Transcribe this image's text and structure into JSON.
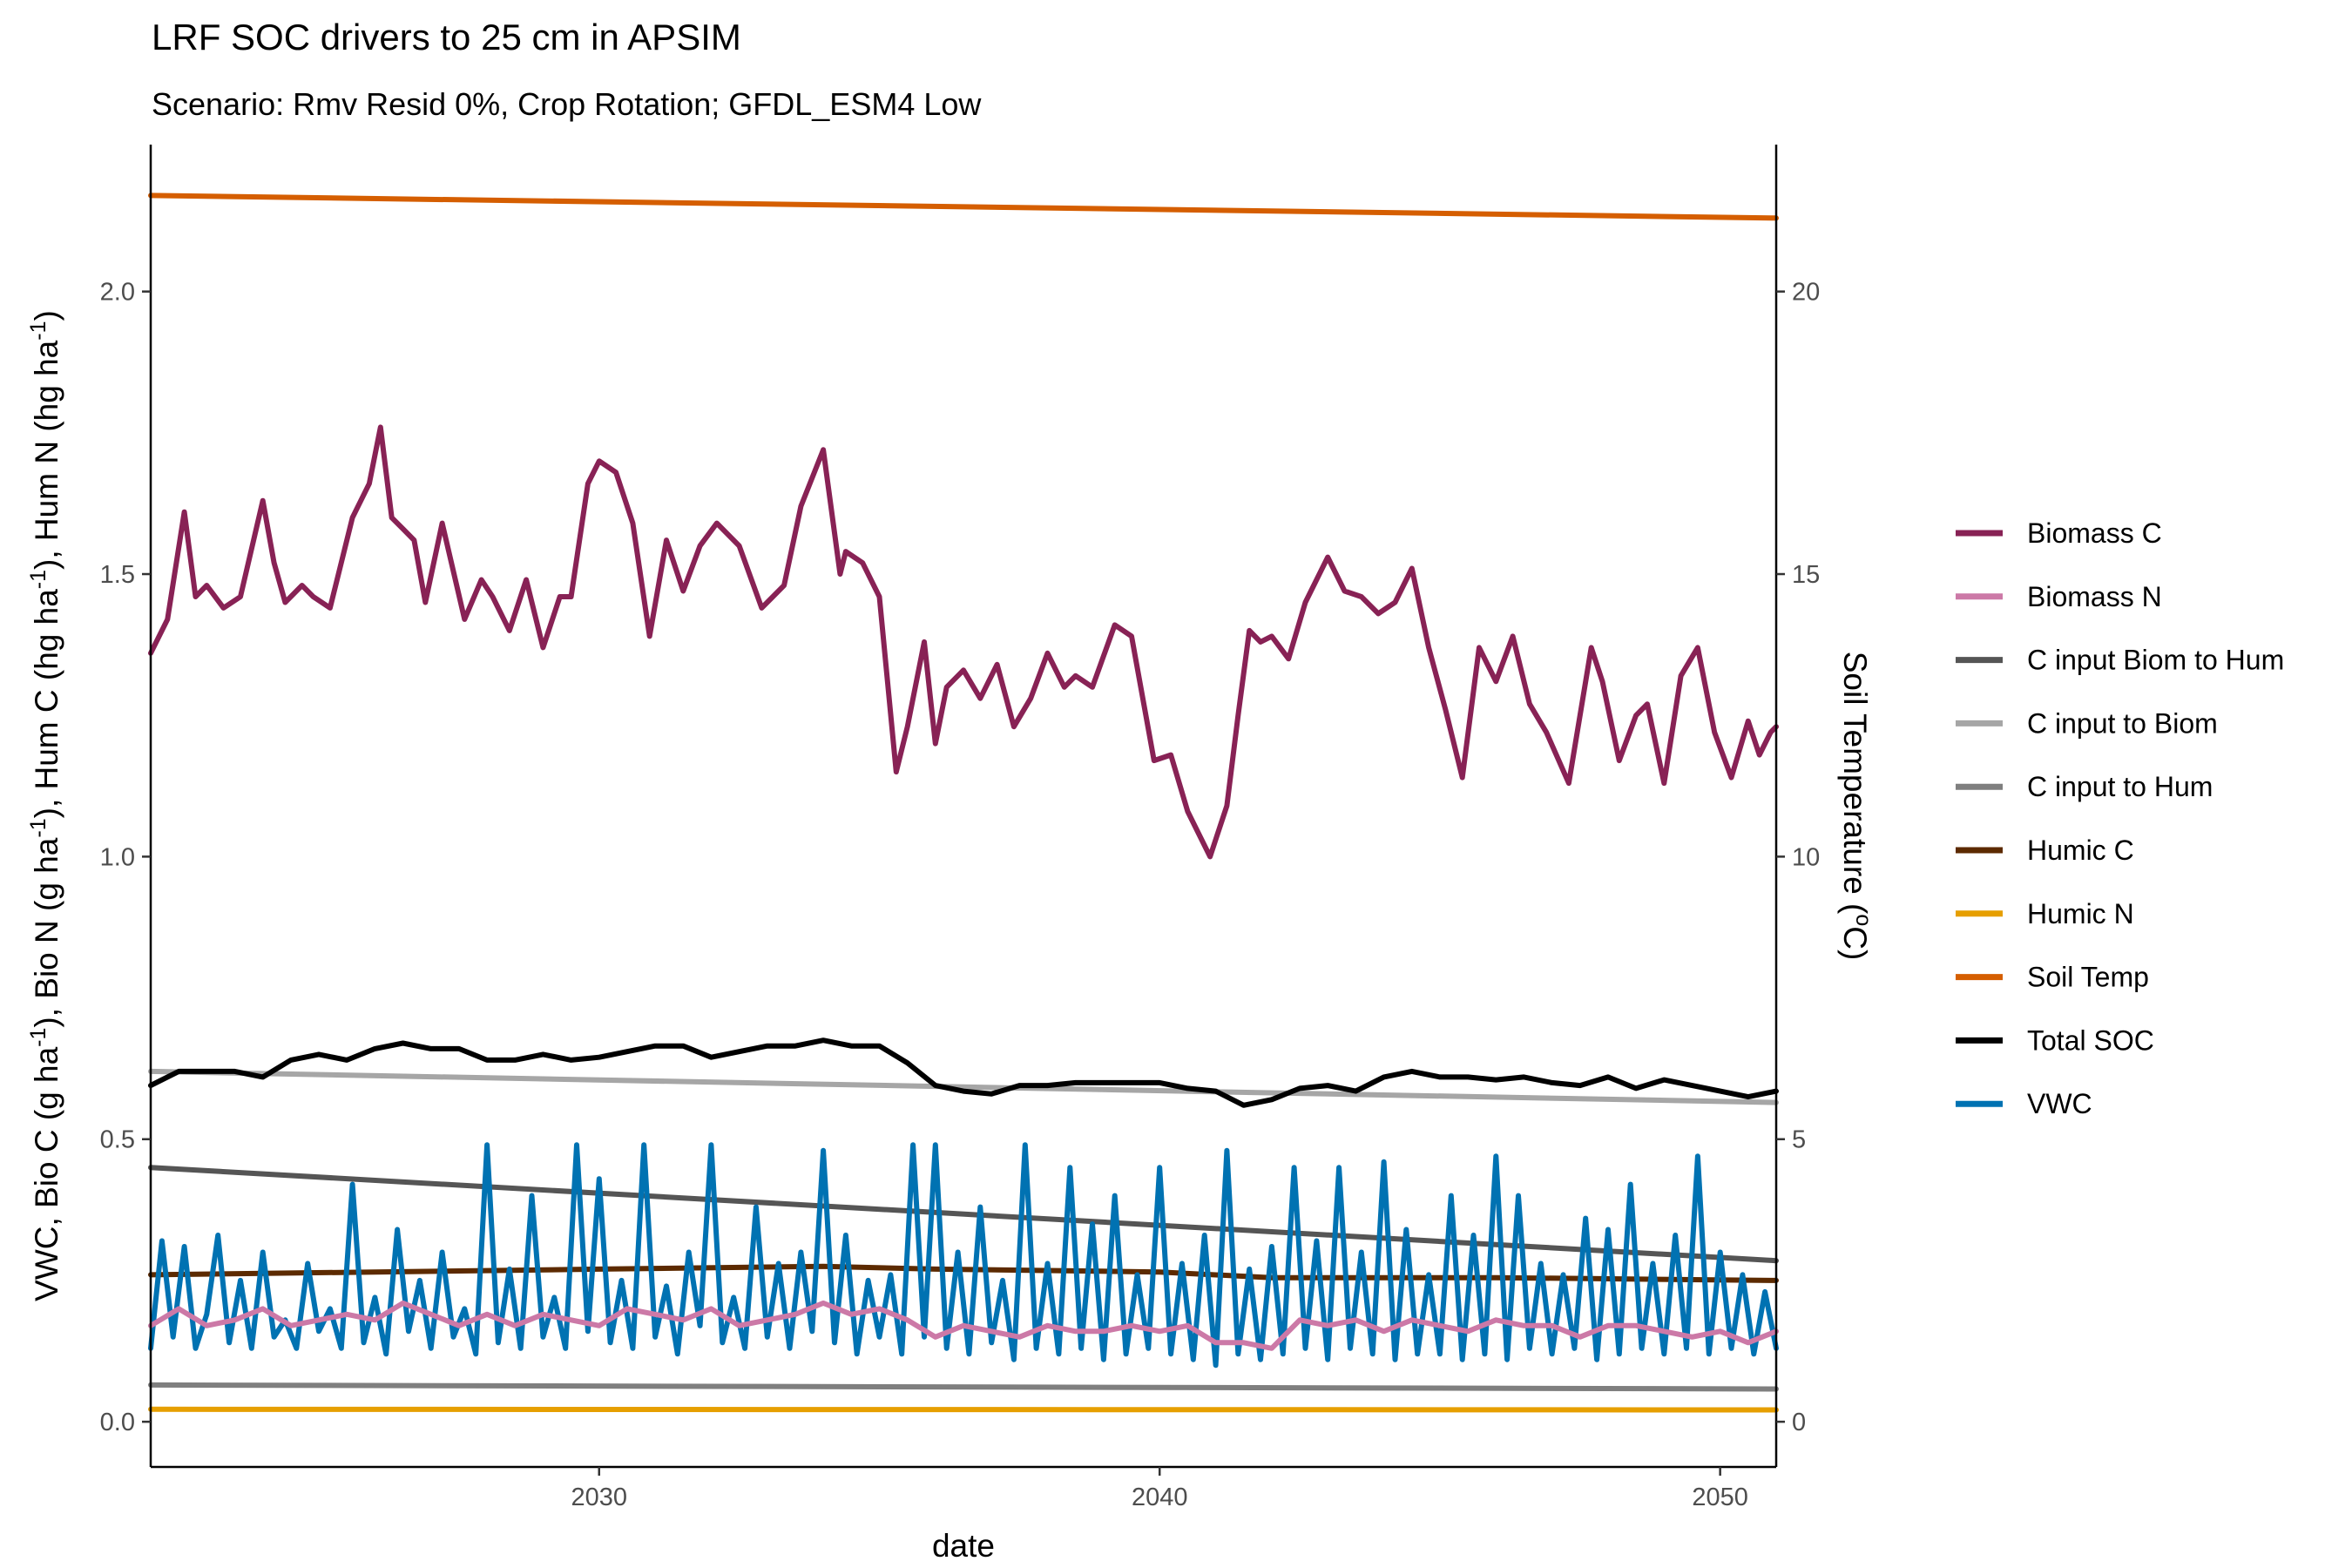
{
  "chart_data": {
    "type": "line",
    "title": "LRF SOC drivers to 25 cm in APSIM",
    "subtitle": "Scenario: Rmv Resid 0%, Crop Rotation; GFDL_ESM4 Low",
    "xlabel": "date",
    "ylabel_left": {
      "p1": "VWC, Bio C (g ha",
      "p2": "), Bio N (g ha",
      "p3": "), Hum C (hg ha",
      "p4": "), Hum N (hg ha",
      "p5": ")",
      "sup": "-1"
    },
    "ylabel_right": {
      "p1": "Soil Temperature (",
      "sup": "o",
      "p2": "C)"
    },
    "xlim": [
      2022.0,
      2051.0
    ],
    "ylim_left": [
      -0.08,
      2.26
    ],
    "ylim_right": [
      -0.8,
      22.6
    ],
    "x_ticks": [
      2030,
      2040,
      2050
    ],
    "y_ticks_left": [
      "0.0",
      "0.5",
      "1.0",
      "1.5",
      "2.0"
    ],
    "y_ticks_right": [
      "0",
      "5",
      "10",
      "15",
      "20"
    ],
    "grid": false,
    "legend_position": "right",
    "series": [
      {
        "name": "Biomass C",
        "color": "#882255",
        "axis": "left",
        "x": [
          2022.0,
          2022.3,
          2022.6,
          2022.8,
          2023.0,
          2023.3,
          2023.6,
          2024.0,
          2024.2,
          2024.4,
          2024.7,
          2024.9,
          2025.2,
          2025.6,
          2025.9,
          2026.1,
          2026.3,
          2026.5,
          2026.7,
          2026.9,
          2027.2,
          2027.6,
          2027.9,
          2028.1,
          2028.4,
          2028.7,
          2029.0,
          2029.3,
          2029.5,
          2029.8,
          2030.0,
          2030.3,
          2030.6,
          2030.9,
          2031.2,
          2031.5,
          2031.8,
          2032.1,
          2032.5,
          2032.9,
          2033.3,
          2033.6,
          2034.0,
          2034.3,
          2034.4,
          2034.7,
          2035.0,
          2035.3,
          2035.5,
          2035.8,
          2036.0,
          2036.2,
          2036.5,
          2036.8,
          2037.1,
          2037.4,
          2037.7,
          2038.0,
          2038.3,
          2038.5,
          2038.8,
          2039.2,
          2039.5,
          2039.9,
          2040.2,
          2040.5,
          2040.9,
          2041.2,
          2041.4,
          2041.6,
          2041.8,
          2042.0,
          2042.3,
          2042.6,
          2043.0,
          2043.3,
          2043.6,
          2043.9,
          2044.2,
          2044.5,
          2044.8,
          2045.1,
          2045.4,
          2045.7,
          2046.0,
          2046.3,
          2046.6,
          2046.9,
          2047.3,
          2047.7,
          2047.9,
          2048.2,
          2048.5,
          2048.7,
          2049.0,
          2049.3,
          2049.6,
          2049.9,
          2050.2,
          2050.5,
          2050.7,
          2050.9,
          2051.0
        ],
        "values": [
          1.36,
          1.42,
          1.61,
          1.46,
          1.48,
          1.44,
          1.46,
          1.63,
          1.52,
          1.45,
          1.48,
          1.46,
          1.44,
          1.6,
          1.66,
          1.76,
          1.6,
          1.58,
          1.56,
          1.45,
          1.59,
          1.42,
          1.49,
          1.46,
          1.4,
          1.49,
          1.37,
          1.46,
          1.46,
          1.66,
          1.7,
          1.68,
          1.59,
          1.39,
          1.56,
          1.47,
          1.55,
          1.59,
          1.55,
          1.44,
          1.48,
          1.62,
          1.72,
          1.5,
          1.54,
          1.52,
          1.46,
          1.15,
          1.23,
          1.38,
          1.2,
          1.3,
          1.33,
          1.28,
          1.34,
          1.23,
          1.28,
          1.36,
          1.3,
          1.32,
          1.3,
          1.41,
          1.39,
          1.17,
          1.18,
          1.08,
          1.0,
          1.09,
          1.25,
          1.4,
          1.38,
          1.39,
          1.35,
          1.45,
          1.53,
          1.47,
          1.46,
          1.43,
          1.45,
          1.51,
          1.37,
          1.26,
          1.14,
          1.37,
          1.31,
          1.39,
          1.27,
          1.22,
          1.13,
          1.37,
          1.31,
          1.17,
          1.25,
          1.27,
          1.13,
          1.32,
          1.37,
          1.22,
          1.14,
          1.24,
          1.18,
          1.22,
          1.23
        ]
      },
      {
        "name": "Biomass N",
        "color": "#CC79A7",
        "axis": "left",
        "x": [
          2022.0,
          2022.5,
          2023.0,
          2023.5,
          2024.0,
          2024.5,
          2025.0,
          2025.5,
          2026.0,
          2026.5,
          2027.0,
          2027.5,
          2028.0,
          2028.5,
          2029.0,
          2029.5,
          2030.0,
          2030.5,
          2031.0,
          2031.5,
          2032.0,
          2032.5,
          2033.0,
          2033.5,
          2034.0,
          2034.5,
          2035.0,
          2035.5,
          2036.0,
          2036.5,
          2037.0,
          2037.5,
          2038.0,
          2038.5,
          2039.0,
          2039.5,
          2040.0,
          2040.5,
          2041.0,
          2041.5,
          2042.0,
          2042.5,
          2043.0,
          2043.5,
          2044.0,
          2044.5,
          2045.0,
          2045.5,
          2046.0,
          2046.5,
          2047.0,
          2047.5,
          2048.0,
          2048.5,
          2049.0,
          2049.5,
          2050.0,
          2050.5,
          2051.0
        ],
        "values": [
          0.17,
          0.2,
          0.17,
          0.18,
          0.2,
          0.17,
          0.18,
          0.19,
          0.18,
          0.21,
          0.19,
          0.17,
          0.19,
          0.17,
          0.19,
          0.18,
          0.17,
          0.2,
          0.19,
          0.18,
          0.2,
          0.17,
          0.18,
          0.19,
          0.21,
          0.19,
          0.2,
          0.18,
          0.15,
          0.17,
          0.16,
          0.15,
          0.17,
          0.16,
          0.16,
          0.17,
          0.16,
          0.17,
          0.14,
          0.14,
          0.13,
          0.18,
          0.17,
          0.18,
          0.16,
          0.18,
          0.17,
          0.16,
          0.18,
          0.17,
          0.17,
          0.15,
          0.17,
          0.17,
          0.16,
          0.15,
          0.16,
          0.14,
          0.16
        ]
      },
      {
        "name": "C input Biom to Hum",
        "color": "#555555",
        "axis": "left",
        "x": [
          2022.0,
          2051.0
        ],
        "values": [
          0.45,
          0.285
        ]
      },
      {
        "name": "C input to Biom",
        "color": "#a6a6a6",
        "axis": "left",
        "x": [
          2022.0,
          2051.0
        ],
        "values": [
          0.62,
          0.565
        ]
      },
      {
        "name": "C input to Hum",
        "color": "#7f7f7f",
        "axis": "left",
        "x": [
          2022.0,
          2051.0
        ],
        "values": [
          0.065,
          0.058
        ]
      },
      {
        "name": "Humic C",
        "color": "#5c2a00",
        "axis": "left",
        "x": [
          2022.0,
          2026.0,
          2030.0,
          2034.0,
          2036.0,
          2040.0,
          2042.0,
          2046.0,
          2051.0
        ],
        "values": [
          0.26,
          0.265,
          0.27,
          0.275,
          0.27,
          0.265,
          0.255,
          0.255,
          0.25
        ]
      },
      {
        "name": "Humic N",
        "color": "#E69F00",
        "axis": "left",
        "x": [
          2022.0,
          2051.0
        ],
        "values": [
          0.022,
          0.021
        ]
      },
      {
        "name": "Soil Temp",
        "color": "#D55E00",
        "axis": "right",
        "x": [
          2022.0,
          2051.0
        ],
        "values": [
          21.7,
          21.3
        ]
      },
      {
        "name": "Total SOC",
        "color": "#000000",
        "axis": "left",
        "x": [
          2022.0,
          2022.5,
          2023.0,
          2023.5,
          2024.0,
          2024.5,
          2025.0,
          2025.5,
          2026.0,
          2026.5,
          2027.0,
          2027.5,
          2028.0,
          2028.5,
          2029.0,
          2029.5,
          2030.0,
          2030.5,
          2031.0,
          2031.5,
          2032.0,
          2032.5,
          2033.0,
          2033.5,
          2034.0,
          2034.5,
          2035.0,
          2035.5,
          2036.0,
          2036.5,
          2037.0,
          2037.5,
          2038.0,
          2038.5,
          2039.0,
          2039.5,
          2040.0,
          2040.5,
          2041.0,
          2041.5,
          2042.0,
          2042.5,
          2043.0,
          2043.5,
          2044.0,
          2044.5,
          2045.0,
          2045.5,
          2046.0,
          2046.5,
          2047.0,
          2047.5,
          2048.0,
          2048.5,
          2049.0,
          2049.5,
          2050.0,
          2050.5,
          2051.0
        ],
        "values": [
          0.595,
          0.62,
          0.62,
          0.62,
          0.61,
          0.64,
          0.65,
          0.64,
          0.66,
          0.67,
          0.66,
          0.66,
          0.64,
          0.64,
          0.65,
          0.64,
          0.645,
          0.655,
          0.665,
          0.665,
          0.645,
          0.655,
          0.665,
          0.665,
          0.675,
          0.665,
          0.665,
          0.635,
          0.595,
          0.585,
          0.58,
          0.595,
          0.595,
          0.6,
          0.6,
          0.6,
          0.6,
          0.59,
          0.585,
          0.56,
          0.57,
          0.59,
          0.595,
          0.585,
          0.61,
          0.62,
          0.61,
          0.61,
          0.605,
          0.61,
          0.6,
          0.595,
          0.61,
          0.59,
          0.605,
          0.595,
          0.585,
          0.575,
          0.585
        ]
      },
      {
        "name": "VWC",
        "color": "#0072B2",
        "axis": "left",
        "x": [
          2022.0,
          2022.2,
          2022.4,
          2022.6,
          2022.8,
          2023.0,
          2023.2,
          2023.4,
          2023.6,
          2023.8,
          2024.0,
          2024.2,
          2024.4,
          2024.6,
          2024.8,
          2025.0,
          2025.2,
          2025.4,
          2025.6,
          2025.8,
          2026.0,
          2026.2,
          2026.4,
          2026.6,
          2026.8,
          2027.0,
          2027.2,
          2027.4,
          2027.6,
          2027.8,
          2028.0,
          2028.2,
          2028.4,
          2028.6,
          2028.8,
          2029.0,
          2029.2,
          2029.4,
          2029.6,
          2029.8,
          2030.0,
          2030.2,
          2030.4,
          2030.6,
          2030.8,
          2031.0,
          2031.2,
          2031.4,
          2031.6,
          2031.8,
          2032.0,
          2032.2,
          2032.4,
          2032.6,
          2032.8,
          2033.0,
          2033.2,
          2033.4,
          2033.6,
          2033.8,
          2034.0,
          2034.2,
          2034.4,
          2034.6,
          2034.8,
          2035.0,
          2035.2,
          2035.4,
          2035.6,
          2035.8,
          2036.0,
          2036.2,
          2036.4,
          2036.6,
          2036.8,
          2037.0,
          2037.2,
          2037.4,
          2037.6,
          2037.8,
          2038.0,
          2038.2,
          2038.4,
          2038.6,
          2038.8,
          2039.0,
          2039.2,
          2039.4,
          2039.6,
          2039.8,
          2040.0,
          2040.2,
          2040.4,
          2040.6,
          2040.8,
          2041.0,
          2041.2,
          2041.4,
          2041.6,
          2041.8,
          2042.0,
          2042.2,
          2042.4,
          2042.6,
          2042.8,
          2043.0,
          2043.2,
          2043.4,
          2043.6,
          2043.8,
          2044.0,
          2044.2,
          2044.4,
          2044.6,
          2044.8,
          2045.0,
          2045.2,
          2045.4,
          2045.6,
          2045.8,
          2046.0,
          2046.2,
          2046.4,
          2046.6,
          2046.8,
          2047.0,
          2047.2,
          2047.4,
          2047.6,
          2047.8,
          2048.0,
          2048.2,
          2048.4,
          2048.6,
          2048.8,
          2049.0,
          2049.2,
          2049.4,
          2049.6,
          2049.8,
          2050.0,
          2050.2,
          2050.4,
          2050.6,
          2050.8,
          2051.0
        ],
        "values": [
          0.13,
          0.32,
          0.15,
          0.31,
          0.13,
          0.19,
          0.33,
          0.14,
          0.25,
          0.13,
          0.3,
          0.15,
          0.18,
          0.13,
          0.28,
          0.16,
          0.2,
          0.13,
          0.42,
          0.14,
          0.22,
          0.12,
          0.34,
          0.16,
          0.25,
          0.13,
          0.3,
          0.15,
          0.2,
          0.12,
          0.49,
          0.14,
          0.27,
          0.13,
          0.4,
          0.15,
          0.22,
          0.13,
          0.49,
          0.16,
          0.43,
          0.14,
          0.25,
          0.13,
          0.49,
          0.15,
          0.24,
          0.12,
          0.3,
          0.17,
          0.49,
          0.14,
          0.22,
          0.13,
          0.38,
          0.15,
          0.28,
          0.13,
          0.3,
          0.16,
          0.48,
          0.14,
          0.33,
          0.12,
          0.25,
          0.15,
          0.26,
          0.12,
          0.49,
          0.15,
          0.49,
          0.13,
          0.3,
          0.12,
          0.38,
          0.14,
          0.25,
          0.11,
          0.49,
          0.13,
          0.28,
          0.12,
          0.45,
          0.13,
          0.35,
          0.11,
          0.4,
          0.12,
          0.26,
          0.13,
          0.45,
          0.12,
          0.28,
          0.11,
          0.33,
          0.1,
          0.48,
          0.12,
          0.27,
          0.11,
          0.31,
          0.12,
          0.45,
          0.13,
          0.32,
          0.11,
          0.45,
          0.13,
          0.3,
          0.12,
          0.46,
          0.11,
          0.34,
          0.12,
          0.26,
          0.12,
          0.4,
          0.11,
          0.33,
          0.12,
          0.47,
          0.11,
          0.4,
          0.13,
          0.28,
          0.12,
          0.26,
          0.13,
          0.36,
          0.11,
          0.34,
          0.12,
          0.42,
          0.13,
          0.28,
          0.12,
          0.33,
          0.13,
          0.47,
          0.12,
          0.3,
          0.13,
          0.26,
          0.12,
          0.23,
          0.13
        ]
      }
    ]
  }
}
